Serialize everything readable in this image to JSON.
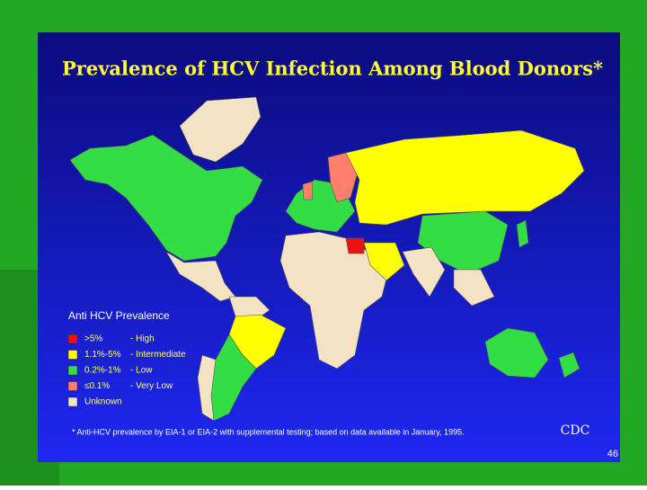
{
  "title": "Prevalence of HCV Infection Among Blood Donors*",
  "legend": {
    "title": "Anti HCV Prevalence",
    "items": [
      {
        "range": ">5%",
        "label": "- High",
        "color": "#ee1111"
      },
      {
        "range": "1.1%-5%",
        "label": "- Intermediate",
        "color": "#ffff00"
      },
      {
        "range": "0.2%-1%",
        "label": "- Low",
        "color": "#33dd44"
      },
      {
        "range": "≤0.1%",
        "label": "- Very Low",
        "color": "#ff7f6a"
      },
      {
        "range": "Unknown",
        "color": "#f4e2c4"
      }
    ]
  },
  "footnote": "* Anti-HCV prevalence by EIA-1 or EIA-2 with supplemental testing; based on data available in January, 1995.",
  "logo": "CDC",
  "page_number": "46"
}
